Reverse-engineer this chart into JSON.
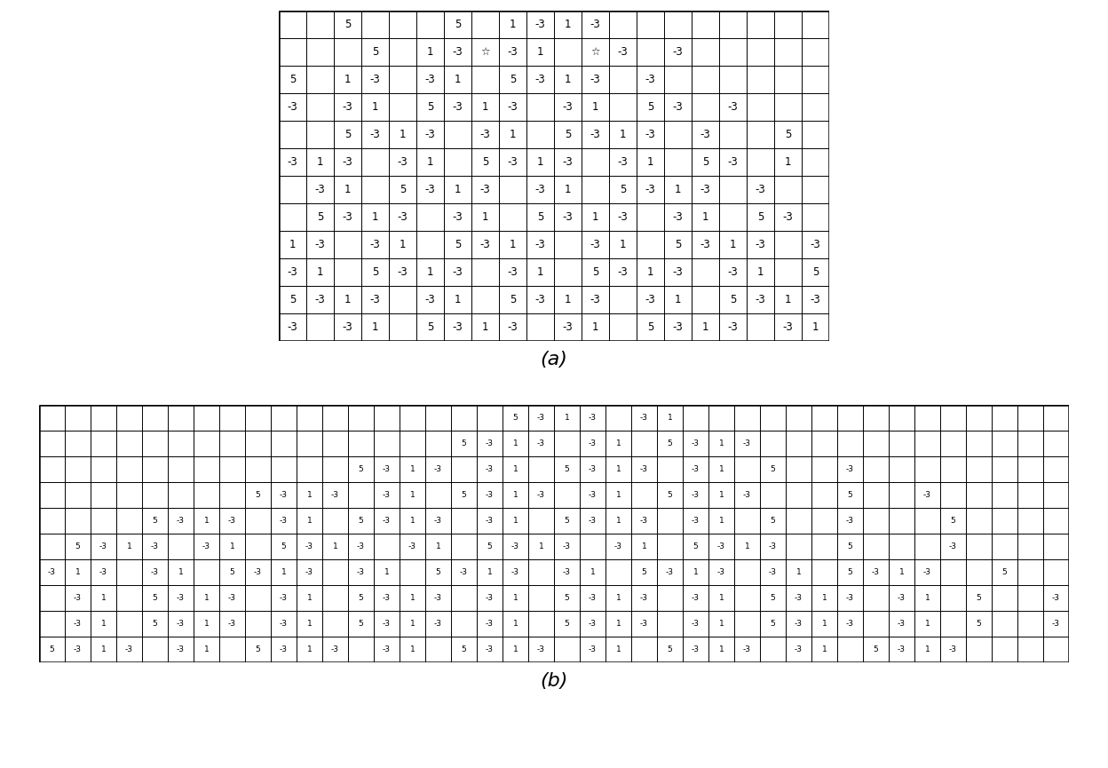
{
  "label_a": "(a)",
  "label_b": "(b)",
  "grid_a_data": [
    [
      "",
      "",
      "5",
      "",
      "",
      "",
      "5",
      "",
      "1",
      "-3",
      "1",
      "-3",
      "",
      "",
      "",
      "",
      "",
      "",
      "",
      ""
    ],
    [
      "",
      "",
      "",
      "5",
      "",
      "1",
      "-3",
      "☆",
      "-3",
      "1",
      "",
      "☆",
      "-3",
      "",
      "-3",
      "",
      "",
      "",
      "",
      ""
    ],
    [
      "5",
      "",
      "1",
      "-3",
      "",
      "-3",
      "1",
      "",
      "5",
      "-3",
      "1",
      "-3",
      "",
      "-3",
      "",
      "",
      "",
      "",
      "",
      ""
    ],
    [
      "-3",
      "",
      "-3",
      "1",
      "",
      "5",
      "-3",
      "1",
      "-3",
      "",
      "-3",
      "1",
      "",
      "5",
      "-3",
      "",
      "-3",
      "",
      "",
      ""
    ],
    [
      "",
      "",
      "5",
      "-3",
      "1",
      "-3",
      "",
      "-3",
      "1",
      "",
      "5",
      "-3",
      "1",
      "-3",
      "",
      "-3",
      "",
      "",
      "5",
      ""
    ],
    [
      "-3",
      "1",
      "-3",
      "",
      "-3",
      "1",
      "",
      "5",
      "-3",
      "1",
      "-3",
      "",
      "-3",
      "1",
      "",
      "5",
      "-3",
      "",
      "1",
      ""
    ],
    [
      "",
      "-3",
      "1",
      "",
      "5",
      "-3",
      "1",
      "-3",
      "",
      "-3",
      "1",
      "",
      "5",
      "-3",
      "1",
      "-3",
      "",
      "-3",
      "",
      ""
    ],
    [
      "",
      "5",
      "-3",
      "1",
      "-3",
      "",
      "-3",
      "1",
      "",
      "5",
      "-3",
      "1",
      "-3",
      "",
      "-3",
      "1",
      "",
      "5",
      "-3",
      ""
    ],
    [
      "1",
      "-3",
      "",
      "-3",
      "1",
      "",
      "5",
      "-3",
      "1",
      "-3",
      "",
      "-3",
      "1",
      "",
      "5",
      "-3",
      "1",
      "-3",
      "",
      "-3"
    ],
    [
      "-3",
      "1",
      "",
      "5",
      "-3",
      "1",
      "-3",
      "",
      "-3",
      "1",
      "",
      "5",
      "-3",
      "1",
      "-3",
      "",
      "-3",
      "1",
      "",
      "5"
    ],
    [
      "5",
      "-3",
      "1",
      "-3",
      "",
      "-3",
      "1",
      "",
      "5",
      "-3",
      "1",
      "-3",
      "",
      "-3",
      "1",
      "",
      "5",
      "-3",
      "1",
      "-3"
    ],
    [
      "-3",
      "",
      "-3",
      "1",
      "",
      "5",
      "-3",
      "1",
      "-3",
      "",
      "-3",
      "1",
      "",
      "5",
      "-3",
      "1",
      "-3",
      "",
      "-3",
      "1"
    ]
  ],
  "grid_b_data": [
    [
      "",
      "",
      "",
      "",
      "",
      "",
      "",
      "",
      "",
      "",
      "",
      "",
      "",
      "",
      "",
      "",
      "",
      "",
      "5",
      "-3",
      "1",
      "-3",
      "",
      "-3",
      "1",
      "",
      "",
      "",
      "",
      "",
      "",
      "",
      "",
      "",
      "",
      "",
      "",
      "",
      "",
      ""
    ],
    [
      "",
      "",
      "",
      "",
      "",
      "",
      "",
      "",
      "",
      "",
      "",
      "",
      "",
      "",
      "",
      "",
      "5",
      "-3",
      "1",
      "-3",
      "",
      "-3",
      "1",
      "",
      "5",
      "-3",
      "1",
      "-3",
      "",
      "",
      "",
      "",
      "",
      "",
      "",
      "",
      "",
      "",
      "",
      ""
    ],
    [
      "",
      "",
      "",
      "",
      "",
      "",
      "",
      "",
      "",
      "",
      "",
      "",
      "5",
      "-3",
      "1",
      "-3",
      "",
      "-3",
      "1",
      "",
      "5",
      "-3",
      "1",
      "-3",
      "",
      "-3",
      "1",
      "",
      "5",
      "",
      "",
      "-3",
      "",
      "",
      "",
      "",
      "",
      "",
      "",
      ""
    ],
    [
      "",
      "",
      "",
      "",
      "",
      "",
      "",
      "",
      "5",
      "-3",
      "1",
      "-3",
      "",
      "-3",
      "1",
      "",
      "5",
      "-3",
      "1",
      "-3",
      "",
      "-3",
      "1",
      "",
      "5",
      "-3",
      "1",
      "-3",
      "",
      "",
      "",
      "5",
      "",
      "",
      "-3",
      "",
      "",
      "",
      "",
      ""
    ],
    [
      "",
      "",
      "",
      "",
      "5",
      "-3",
      "1",
      "-3",
      "",
      "-3",
      "1",
      "",
      "5",
      "-3",
      "1",
      "-3",
      "",
      "-3",
      "1",
      "",
      "5",
      "-3",
      "1",
      "-3",
      "",
      "-3",
      "1",
      "",
      "5",
      "",
      "",
      "-3",
      "",
      "",
      "",
      "5",
      "",
      "",
      "",
      ""
    ],
    [
      "",
      "5",
      "-3",
      "1",
      "-3",
      "",
      "-3",
      "1",
      "",
      "5",
      "-3",
      "1",
      "-3",
      "",
      "-3",
      "1",
      "",
      "5",
      "-3",
      "1",
      "-3",
      "",
      "-3",
      "1",
      "",
      "5",
      "-3",
      "1",
      "-3",
      "",
      "",
      "5",
      "",
      "",
      "",
      "-3",
      "",
      "",
      "",
      ""
    ],
    [
      "-3",
      "1",
      "-3",
      "",
      "-3",
      "1",
      "",
      "5",
      "-3",
      "1",
      "-3",
      "",
      "-3",
      "1",
      "",
      "5",
      "-3",
      "1",
      "-3",
      "",
      "-3",
      "1",
      "",
      "5",
      "-3",
      "1",
      "-3",
      "",
      "-3",
      "1",
      "",
      "5",
      "-3",
      "1",
      "-3",
      "",
      "",
      "5",
      "",
      ""
    ],
    [
      "",
      "-3",
      "1",
      "",
      "5",
      "-3",
      "1",
      "-3",
      "",
      "-3",
      "1",
      "",
      "5",
      "-3",
      "1",
      "-3",
      "",
      "-3",
      "1",
      "",
      "5",
      "-3",
      "1",
      "-3",
      "",
      "-3",
      "1",
      "",
      "5",
      "-3",
      "1",
      "-3",
      "",
      "-3",
      "1",
      "",
      "5",
      "",
      "",
      "-3"
    ],
    [
      "",
      "-3",
      "1",
      "",
      "5",
      "-3",
      "1",
      "-3",
      "",
      "-3",
      "1",
      "",
      "5",
      "-3",
      "1",
      "-3",
      "",
      "-3",
      "1",
      "",
      "5",
      "-3",
      "1",
      "-3",
      "",
      "-3",
      "1",
      "",
      "5",
      "-3",
      "1",
      "-3",
      "",
      "-3",
      "1",
      "",
      "5",
      "",
      "",
      "-3"
    ],
    [
      "5",
      "-3",
      "1",
      "-3",
      "",
      "-3",
      "1",
      "",
      "5",
      "-3",
      "1",
      "-3",
      "",
      "-3",
      "1",
      "",
      "5",
      "-3",
      "1",
      "-3",
      "",
      "-3",
      "1",
      "",
      "5",
      "-3",
      "1",
      "-3",
      "",
      "-3",
      "1",
      "",
      "5",
      "-3",
      "1",
      "-3",
      "",
      "",
      "",
      ""
    ]
  ],
  "font_size_a": 8.5,
  "font_size_b": 6.5,
  "label_fontsize": 16,
  "cell_size_a": 0.31,
  "cell_size_b": 0.29
}
